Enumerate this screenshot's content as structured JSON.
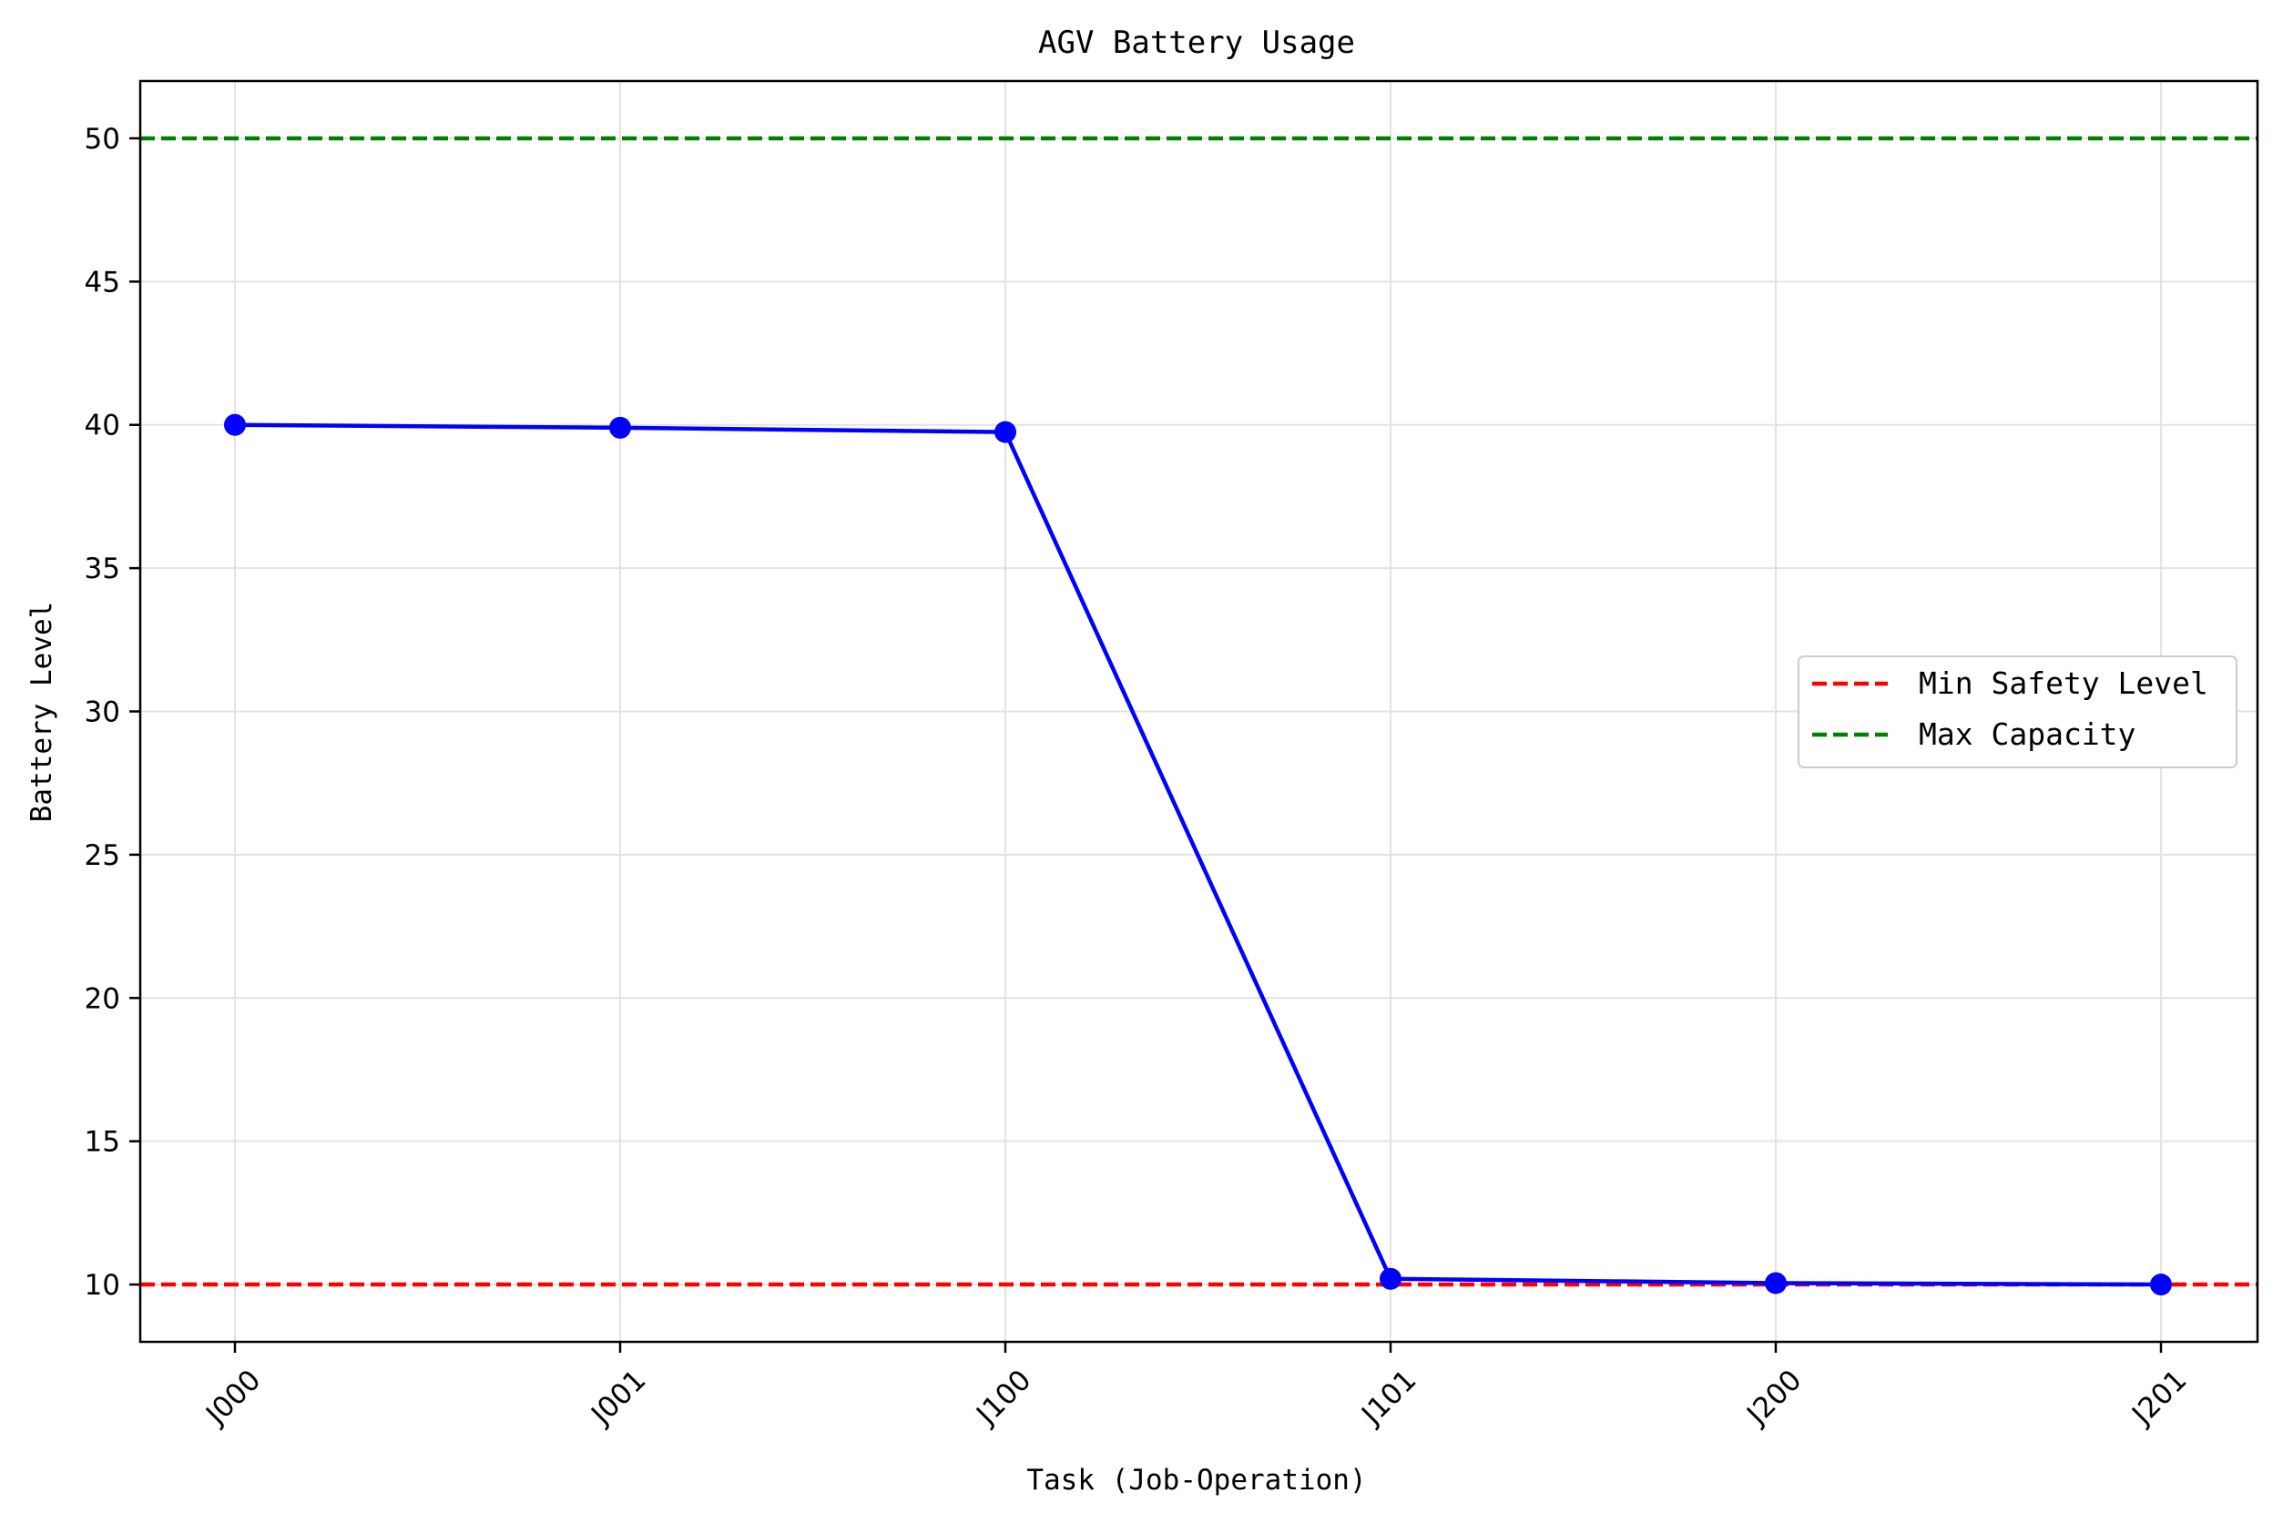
{
  "chart_data": {
    "type": "line",
    "title": "AGV Battery Usage",
    "xlabel": "Task (Job-Operation)",
    "ylabel": "Battery Level",
    "categories": [
      "J000",
      "J001",
      "J100",
      "J101",
      "J200",
      "J201"
    ],
    "series": [
      {
        "values": [
          40.0,
          39.9,
          39.75,
          10.2,
          10.05,
          10.0
        ],
        "color": "#0000ff"
      }
    ],
    "reference_lines": [
      {
        "name": "Min Safety Level",
        "y": 10,
        "color": "#ff0000",
        "style": "dashed"
      },
      {
        "name": "Max Capacity",
        "y": 50,
        "color": "#008000",
        "style": "dashed"
      }
    ],
    "ylim": [
      8,
      52
    ],
    "yticks": [
      10,
      15,
      20,
      25,
      30,
      35,
      40,
      45,
      50
    ],
    "grid": true,
    "legend": "center-right",
    "x_tick_rotation": 45
  }
}
